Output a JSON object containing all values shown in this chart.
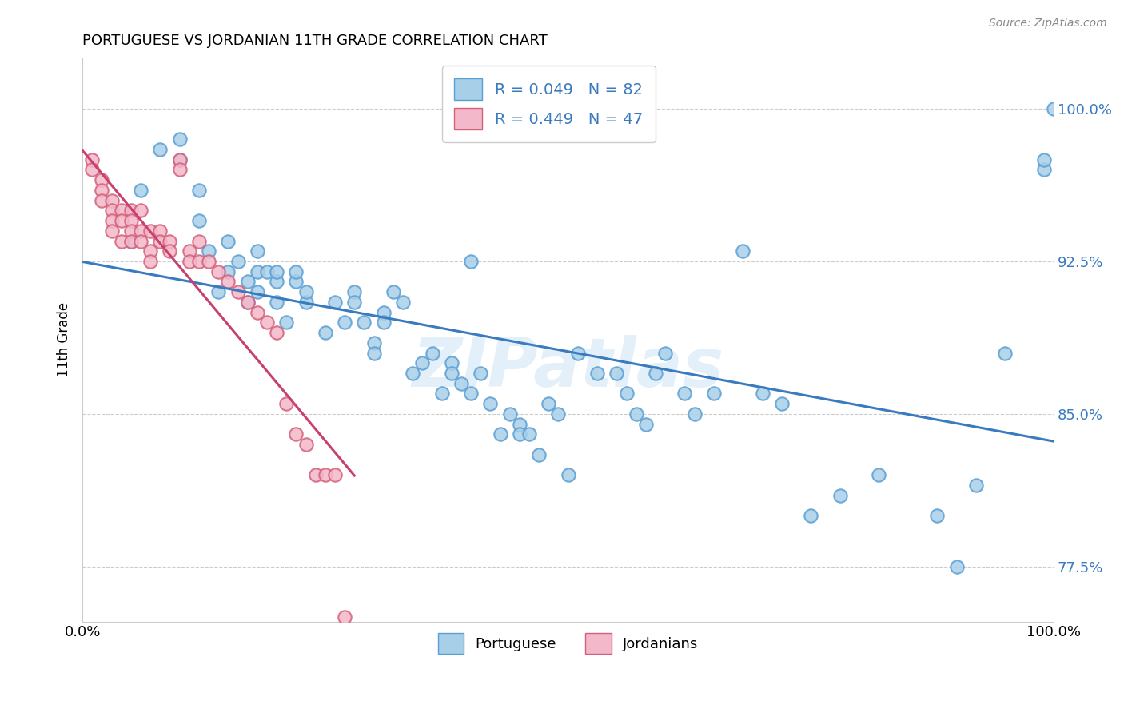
{
  "title": "PORTUGUESE VS JORDANIAN 11TH GRADE CORRELATION CHART",
  "source": "Source: ZipAtlas.com",
  "ylabel": "11th Grade",
  "xmin": 0.0,
  "xmax": 1.0,
  "ymin": 0.748,
  "ymax": 1.025,
  "yticks": [
    0.775,
    0.85,
    0.925,
    1.0
  ],
  "ytick_labels": [
    "77.5%",
    "85.0%",
    "92.5%",
    "100.0%"
  ],
  "blue_color": "#a8cfe8",
  "blue_edge_color": "#5a9fd4",
  "pink_color": "#f4b8cb",
  "pink_edge_color": "#d4607a",
  "blue_line_color": "#3a7bbf",
  "pink_line_color": "#c84070",
  "legend_text_color": "#3a7bbf",
  "legend_blue_label": "R = 0.049   N = 82",
  "legend_pink_label": "R = 0.449   N = 47",
  "watermark": "ZIPatlas",
  "blue_points_x": [
    0.05,
    0.06,
    0.08,
    0.1,
    0.1,
    0.12,
    0.12,
    0.13,
    0.14,
    0.15,
    0.15,
    0.16,
    0.17,
    0.17,
    0.18,
    0.18,
    0.18,
    0.19,
    0.2,
    0.2,
    0.2,
    0.21,
    0.22,
    0.22,
    0.23,
    0.23,
    0.25,
    0.26,
    0.27,
    0.28,
    0.28,
    0.29,
    0.3,
    0.3,
    0.31,
    0.31,
    0.32,
    0.33,
    0.34,
    0.35,
    0.36,
    0.37,
    0.38,
    0.38,
    0.39,
    0.4,
    0.4,
    0.41,
    0.42,
    0.43,
    0.44,
    0.45,
    0.45,
    0.46,
    0.47,
    0.48,
    0.49,
    0.5,
    0.51,
    0.53,
    0.55,
    0.56,
    0.57,
    0.58,
    0.59,
    0.6,
    0.62,
    0.63,
    0.65,
    0.68,
    0.7,
    0.72,
    0.75,
    0.78,
    0.82,
    0.88,
    0.9,
    0.92,
    0.95,
    0.99,
    0.99,
    1.0
  ],
  "blue_points_y": [
    0.935,
    0.96,
    0.98,
    0.975,
    0.985,
    0.945,
    0.96,
    0.93,
    0.91,
    0.92,
    0.935,
    0.925,
    0.915,
    0.905,
    0.93,
    0.92,
    0.91,
    0.92,
    0.915,
    0.92,
    0.905,
    0.895,
    0.915,
    0.92,
    0.905,
    0.91,
    0.89,
    0.905,
    0.895,
    0.91,
    0.905,
    0.895,
    0.885,
    0.88,
    0.9,
    0.895,
    0.91,
    0.905,
    0.87,
    0.875,
    0.88,
    0.86,
    0.875,
    0.87,
    0.865,
    0.925,
    0.86,
    0.87,
    0.855,
    0.84,
    0.85,
    0.845,
    0.84,
    0.84,
    0.83,
    0.855,
    0.85,
    0.82,
    0.88,
    0.87,
    0.87,
    0.86,
    0.85,
    0.845,
    0.87,
    0.88,
    0.86,
    0.85,
    0.86,
    0.93,
    0.86,
    0.855,
    0.8,
    0.81,
    0.82,
    0.8,
    0.775,
    0.815,
    0.88,
    0.97,
    0.975,
    1.0
  ],
  "pink_points_x": [
    0.01,
    0.01,
    0.02,
    0.02,
    0.02,
    0.03,
    0.03,
    0.03,
    0.03,
    0.04,
    0.04,
    0.04,
    0.05,
    0.05,
    0.05,
    0.05,
    0.06,
    0.06,
    0.06,
    0.07,
    0.07,
    0.07,
    0.08,
    0.08,
    0.09,
    0.09,
    0.1,
    0.1,
    0.11,
    0.11,
    0.12,
    0.12,
    0.13,
    0.14,
    0.15,
    0.16,
    0.17,
    0.18,
    0.19,
    0.2,
    0.21,
    0.22,
    0.23,
    0.24,
    0.25,
    0.26,
    0.27
  ],
  "pink_points_y": [
    0.975,
    0.97,
    0.965,
    0.96,
    0.955,
    0.955,
    0.95,
    0.945,
    0.94,
    0.95,
    0.945,
    0.935,
    0.95,
    0.945,
    0.94,
    0.935,
    0.95,
    0.94,
    0.935,
    0.94,
    0.93,
    0.925,
    0.94,
    0.935,
    0.935,
    0.93,
    0.975,
    0.97,
    0.93,
    0.925,
    0.935,
    0.925,
    0.925,
    0.92,
    0.915,
    0.91,
    0.905,
    0.9,
    0.895,
    0.89,
    0.855,
    0.84,
    0.835,
    0.82,
    0.82,
    0.82,
    0.75
  ]
}
